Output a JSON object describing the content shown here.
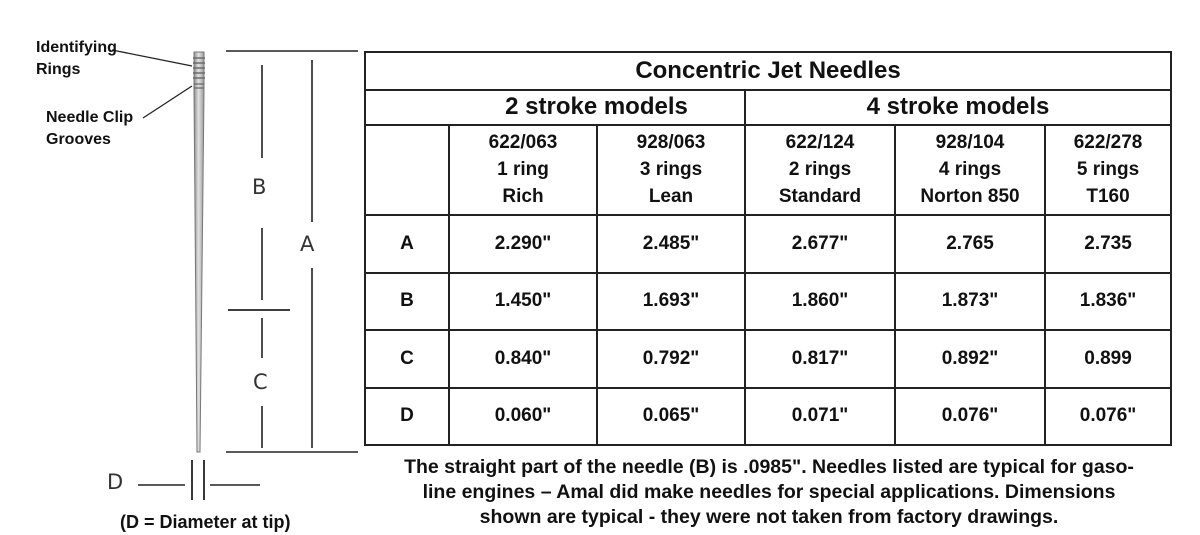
{
  "diagram": {
    "identifying_rings_label": [
      "Identifying",
      "Rings"
    ],
    "clip_grooves_label": [
      "Needle Clip",
      "Grooves"
    ],
    "dim_letters": {
      "a": "A",
      "b": "B",
      "c": "C",
      "d": "D"
    },
    "caption": "(D = Diameter at tip)"
  },
  "table": {
    "title": "Concentric Jet Needles",
    "groups": [
      {
        "label": "2 stroke models",
        "span": 2
      },
      {
        "label": "4 stroke models",
        "span": 3
      }
    ],
    "columns": [
      {
        "part": "622/063",
        "rings": "1 ring",
        "type": "Rich"
      },
      {
        "part": "928/063",
        "rings": "3 rings",
        "type": "Lean"
      },
      {
        "part": "622/124",
        "rings": "2 rings",
        "type": "Standard"
      },
      {
        "part": "928/104",
        "rings": "4 rings",
        "type": "Norton 850"
      },
      {
        "part": "622/278",
        "rings": "5 rings",
        "type": "T160"
      }
    ],
    "rows": [
      {
        "label": "A",
        "values": [
          "2.290\"",
          "2.485\"",
          "2.677\"",
          "2.765",
          "2.735"
        ]
      },
      {
        "label": "B",
        "values": [
          "1.450\"",
          "1.693\"",
          "1.860\"",
          "1.873\"",
          "1.836\""
        ]
      },
      {
        "label": "C",
        "values": [
          "0.840\"",
          "0.792\"",
          "0.817\"",
          "0.892\"",
          "0.899"
        ]
      },
      {
        "label": "D",
        "values": [
          "0.060\"",
          "0.065\"",
          "0.071\"",
          "0.076\"",
          "0.076\""
        ]
      }
    ]
  },
  "footnote": [
    "The straight part of the needle (B) is .0985\". Needles listed are typical for gaso-",
    "line engines – Amal did make needles for special applications. Dimensions",
    "shown are typical - they were not taken from factory drawings."
  ]
}
